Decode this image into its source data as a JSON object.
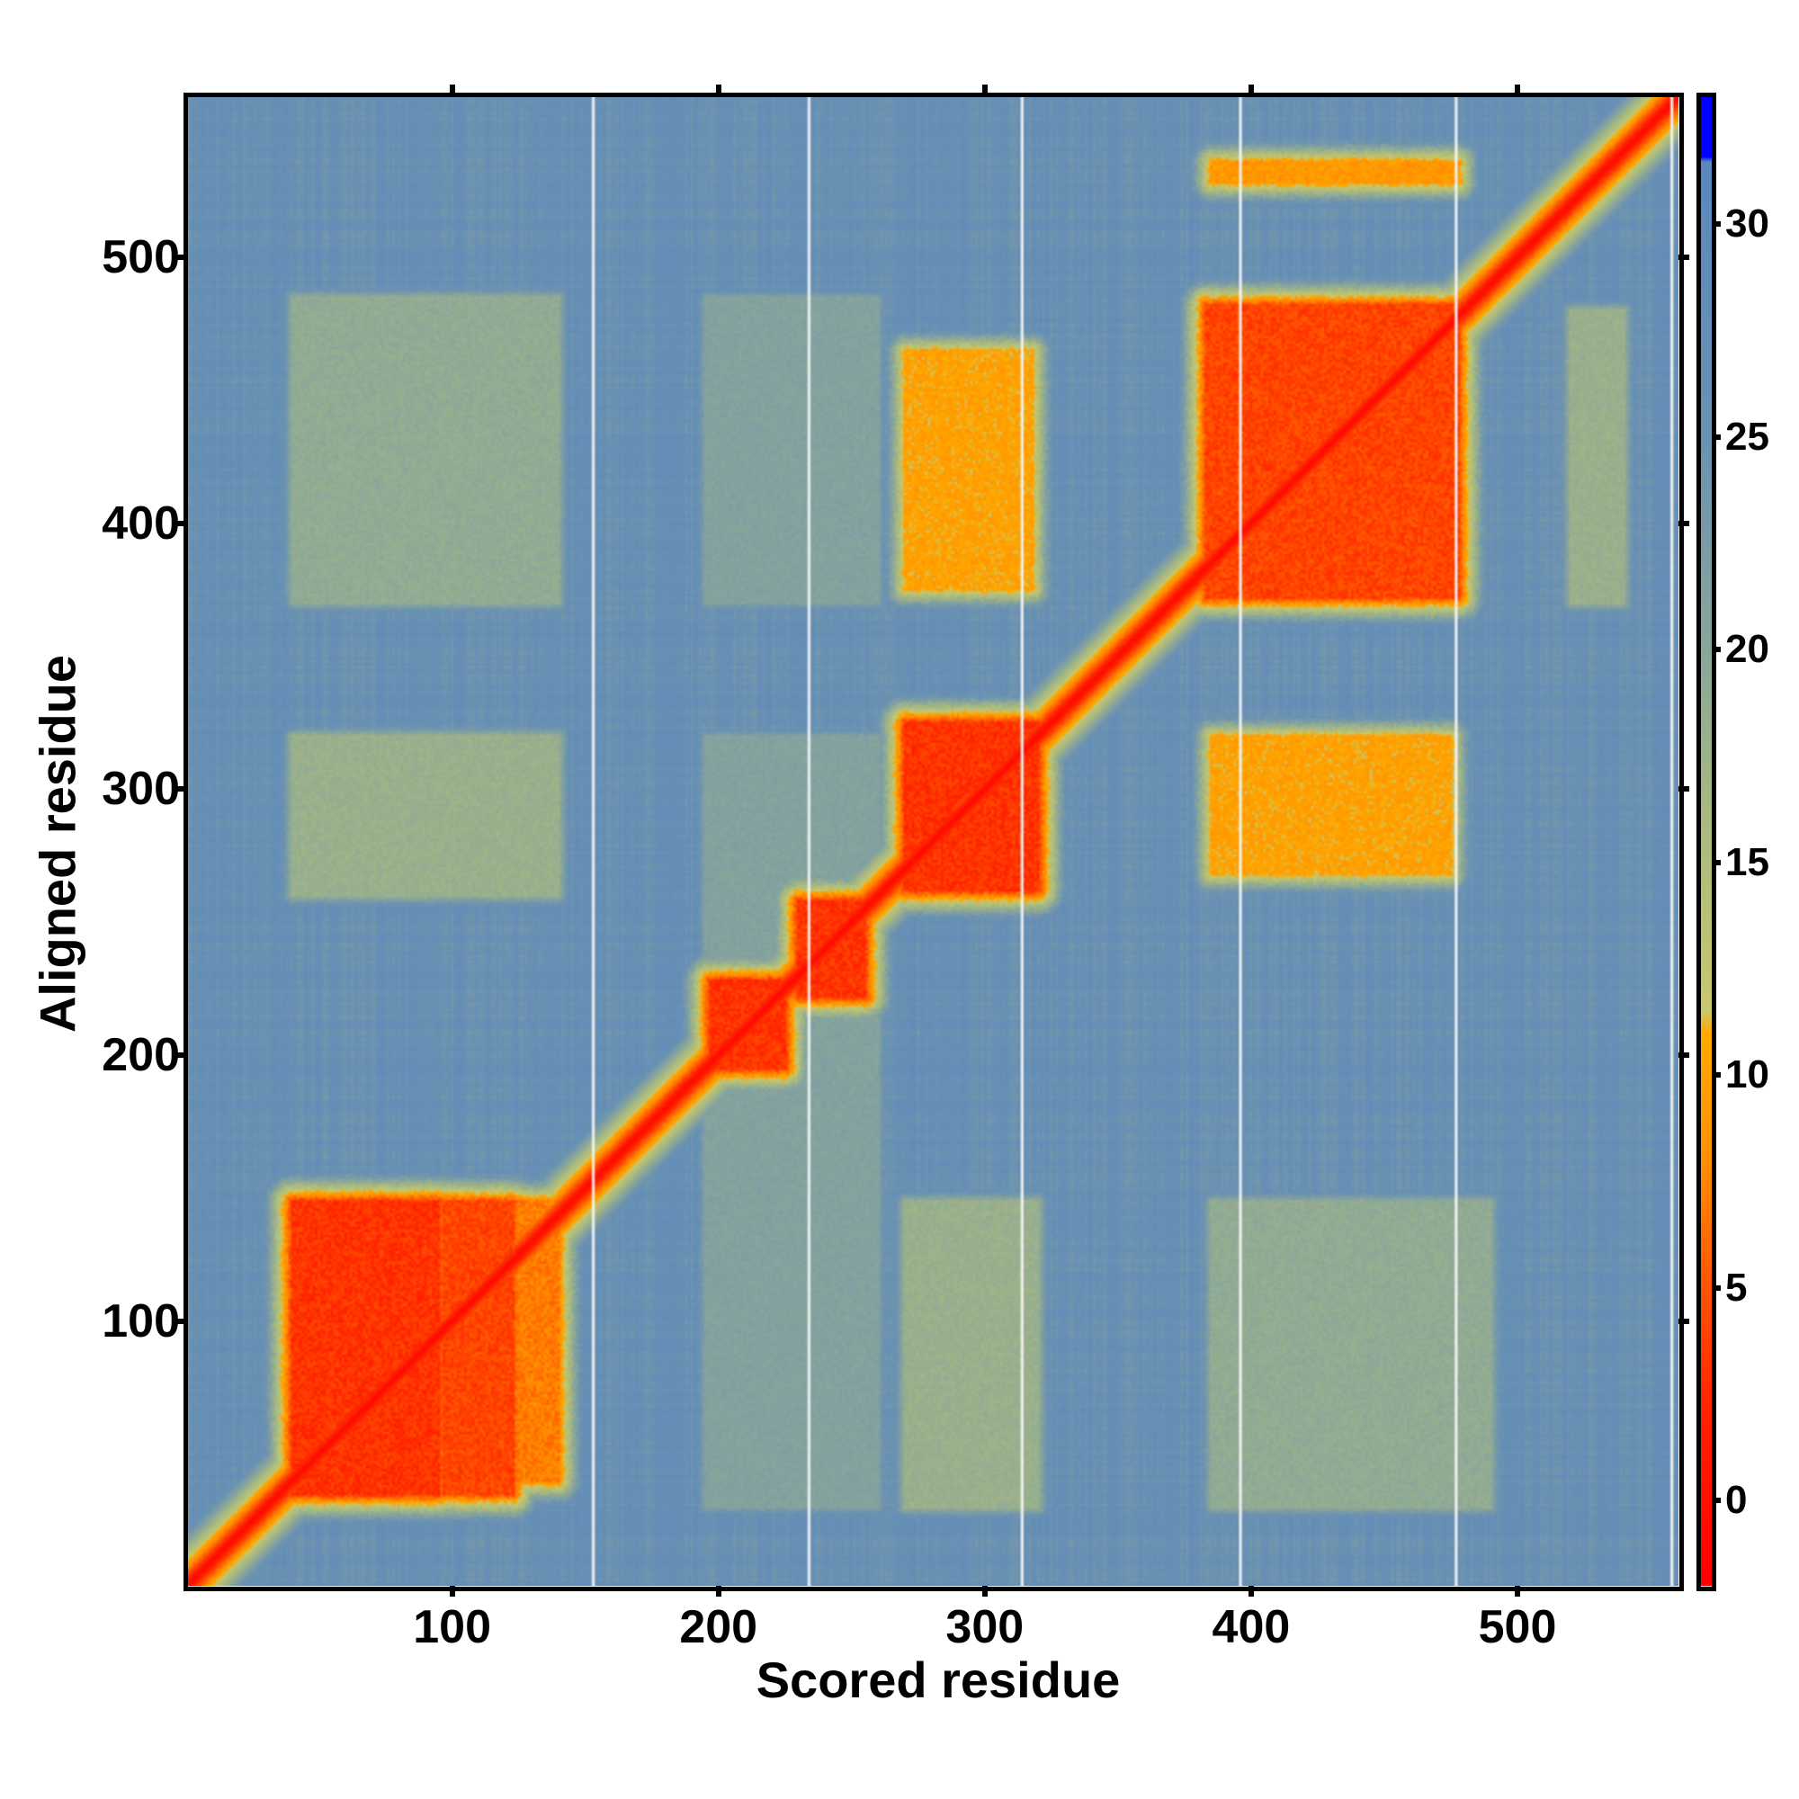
{
  "chart_data": {
    "type": "heatmap",
    "title": "",
    "xlabel": "Scored residue",
    "ylabel": "Aligned residue",
    "xlim": [
      1,
      560
    ],
    "ylim": [
      1,
      560
    ],
    "xticks": [
      100,
      200,
      300,
      400,
      500
    ],
    "yticks": [
      100,
      200,
      300,
      400,
      500
    ],
    "colorbar": {
      "range": [
        -2,
        33
      ],
      "ticks": [
        0,
        5,
        10,
        15,
        20,
        25,
        30
      ],
      "colors": [
        {
          "v": -2,
          "c": "#ff0000"
        },
        {
          "v": 2,
          "c": "#ff2200"
        },
        {
          "v": 5,
          "c": "#ff5500"
        },
        {
          "v": 8,
          "c": "#ff9000"
        },
        {
          "v": 11,
          "c": "#ffaa00"
        },
        {
          "v": 11.5,
          "c": "#c9c86c"
        },
        {
          "v": 16,
          "c": "#a9ba80"
        },
        {
          "v": 20,
          "c": "#8aa69a"
        },
        {
          "v": 25,
          "c": "#6b92b2"
        },
        {
          "v": 31.5,
          "c": "#5a88be"
        },
        {
          "v": 31.6,
          "c": "#0000ff"
        },
        {
          "v": 33,
          "c": "#0000ff"
        }
      ]
    },
    "background_value": 26,
    "diagonal": {
      "value_on_diagonal": -1,
      "increase_per_residue": 1.3
    },
    "regions": [
      {
        "x": [
          40,
          95
        ],
        "y": [
          35,
          145
        ],
        "value": 3
      },
      {
        "x": [
          97,
          123
        ],
        "y": [
          35,
          145
        ],
        "value": 4
      },
      {
        "x": [
          125,
          140
        ],
        "y": [
          40,
          145
        ],
        "value": 7
      },
      {
        "x": [
          197,
          225
        ],
        "y": [
          195,
          228
        ],
        "value": 3
      },
      {
        "x": [
          230,
          255
        ],
        "y": [
          222,
          258
        ],
        "value": 3
      },
      {
        "x": [
          270,
          320
        ],
        "y": [
          262,
          325
        ],
        "value": 3
      },
      {
        "x": [
          383,
          478
        ],
        "y": [
          372,
          482
        ],
        "value": 4
      },
      {
        "x": [
          385,
          475
        ],
        "y": [
          268,
          320
        ],
        "value": 10
      },
      {
        "x": [
          270,
          318
        ],
        "y": [
          375,
          465
        ],
        "value": 10
      },
      {
        "x": [
          385,
          478
        ],
        "y": [
          528,
          536
        ],
        "value": 9
      },
      {
        "x": [
          40,
          140
        ],
        "y": [
          260,
          320
        ],
        "value": 18
      },
      {
        "x": [
          40,
          140
        ],
        "y": [
          370,
          485
        ],
        "value": 19
      },
      {
        "x": [
          270,
          320
        ],
        "y": [
          30,
          145
        ],
        "value": 18
      },
      {
        "x": [
          385,
          490
        ],
        "y": [
          30,
          145
        ],
        "value": 19
      },
      {
        "x": [
          195,
          260
        ],
        "y": [
          30,
          320
        ],
        "value": 21
      },
      {
        "x": [
          195,
          260
        ],
        "y": [
          370,
          485
        ],
        "value": 21
      },
      {
        "x": [
          520,
          540
        ],
        "y": [
          370,
          480
        ],
        "value": 18
      }
    ],
    "chain_boundaries": [
      153,
      234,
      314,
      396,
      477,
      558
    ]
  }
}
